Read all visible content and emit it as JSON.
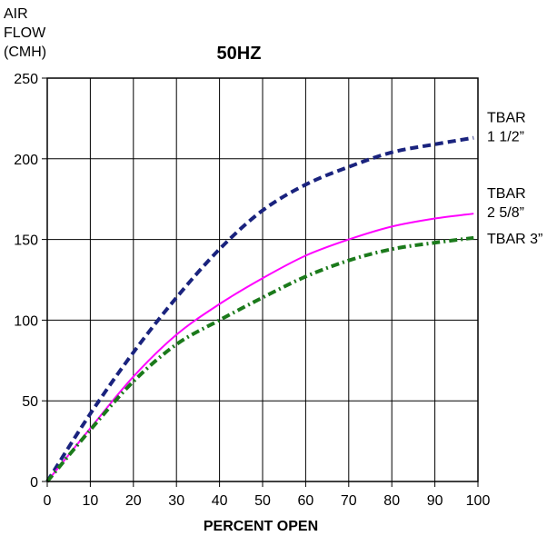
{
  "chart_data": {
    "type": "line",
    "title": "50HZ",
    "xlabel": "PERCENT OPEN",
    "ylabel_lines": [
      "AIR",
      "FLOW",
      "(CMH)"
    ],
    "xlim": [
      0,
      100
    ],
    "ylim": [
      0,
      250
    ],
    "xticks": [
      0,
      10,
      20,
      30,
      40,
      50,
      60,
      70,
      80,
      90,
      100
    ],
    "yticks": [
      0,
      50,
      100,
      150,
      200,
      250
    ],
    "grid": true,
    "series": [
      {
        "label_lines": [
          "TBAR",
          " 1 1/2”"
        ],
        "color": "#1a237e",
        "style": "dashed",
        "x": [
          0,
          10,
          20,
          30,
          40,
          50,
          60,
          70,
          80,
          90,
          99
        ],
        "y": [
          0,
          42,
          80,
          114,
          144,
          168,
          184,
          195,
          204,
          209,
          213
        ]
      },
      {
        "label_lines": [
          "TBAR",
          "2 5/8”"
        ],
        "color": "#ff00ff",
        "style": "solid",
        "x": [
          0,
          10,
          20,
          30,
          40,
          50,
          60,
          70,
          80,
          90,
          99
        ],
        "y": [
          0,
          33,
          65,
          91,
          110,
          126,
          140,
          150,
          158,
          163,
          166
        ]
      },
      {
        "label_lines": [
          "TBAR 3”"
        ],
        "color": "#1b7a1b",
        "style": "dashdot",
        "x": [
          0,
          10,
          20,
          30,
          40,
          50,
          60,
          70,
          80,
          90,
          99
        ],
        "y": [
          0,
          32,
          62,
          85,
          100,
          114,
          127,
          137,
          144,
          148,
          151
        ]
      }
    ]
  }
}
